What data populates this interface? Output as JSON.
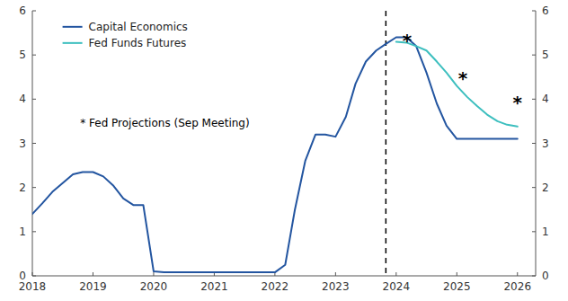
{
  "chart_data": {
    "type": "line",
    "series": [
      {
        "name": "Capital Economics",
        "color": "#2355a0",
        "x": [
          2018.0,
          2018.17,
          2018.33,
          2018.5,
          2018.67,
          2018.83,
          2019.0,
          2019.17,
          2019.33,
          2019.5,
          2019.67,
          2019.83,
          2020.0,
          2020.17,
          2020.33,
          2020.5,
          2020.67,
          2020.83,
          2021.0,
          2021.17,
          2021.33,
          2021.5,
          2021.67,
          2021.83,
          2022.0,
          2022.17,
          2022.33,
          2022.5,
          2022.67,
          2022.83,
          2023.0,
          2023.17,
          2023.33,
          2023.5,
          2023.67,
          2023.83,
          2024.0,
          2024.17,
          2024.33,
          2024.5,
          2024.67,
          2024.83,
          2025.0,
          2025.17,
          2025.33,
          2025.5,
          2025.67,
          2025.83,
          2026.0
        ],
        "values": [
          1.4,
          1.65,
          1.9,
          2.1,
          2.3,
          2.35,
          2.35,
          2.25,
          2.05,
          1.75,
          1.6,
          1.6,
          0.1,
          0.08,
          0.08,
          0.08,
          0.08,
          0.08,
          0.08,
          0.08,
          0.08,
          0.08,
          0.08,
          0.08,
          0.08,
          0.25,
          1.5,
          2.6,
          3.2,
          3.2,
          3.15,
          3.6,
          4.35,
          4.85,
          5.1,
          5.25,
          5.4,
          5.4,
          5.2,
          4.6,
          3.9,
          3.4,
          3.1,
          3.1,
          3.1,
          3.1,
          3.1,
          3.1,
          3.1
        ]
      },
      {
        "name": "Fed Funds Futures",
        "color": "#3dbfbf",
        "x": [
          2024.0,
          2024.17,
          2024.33,
          2024.5,
          2024.67,
          2024.83,
          2025.0,
          2025.17,
          2025.33,
          2025.5,
          2025.67,
          2025.83,
          2026.0
        ],
        "values": [
          5.3,
          5.28,
          5.2,
          5.1,
          4.85,
          4.6,
          4.3,
          4.05,
          3.85,
          3.65,
          3.5,
          3.42,
          3.38
        ]
      }
    ],
    "projections": {
      "x": [
        2024.18,
        2025.1,
        2026.0
      ],
      "values": [
        5.42,
        4.55,
        4.0
      ],
      "marker": "star",
      "color": "#000000"
    },
    "annotations": [
      {
        "text": "* Fed Projections (Sep Meeting)"
      }
    ],
    "vlines": [
      {
        "x": 2023.83,
        "line_style": "dashed",
        "color": "#000000"
      }
    ],
    "xlim": [
      2018,
      2026.3
    ],
    "xticks": [
      2018,
      2019,
      2020,
      2021,
      2022,
      2023,
      2024,
      2025,
      2026
    ],
    "ylim": [
      0,
      6
    ],
    "yticks": [
      0,
      1,
      2,
      3,
      4,
      5,
      6
    ],
    "y2lim": [
      0,
      6
    ],
    "y2ticks": [
      0,
      1,
      2,
      3,
      4,
      5,
      6
    ],
    "grid": false,
    "legend": "upper left"
  }
}
